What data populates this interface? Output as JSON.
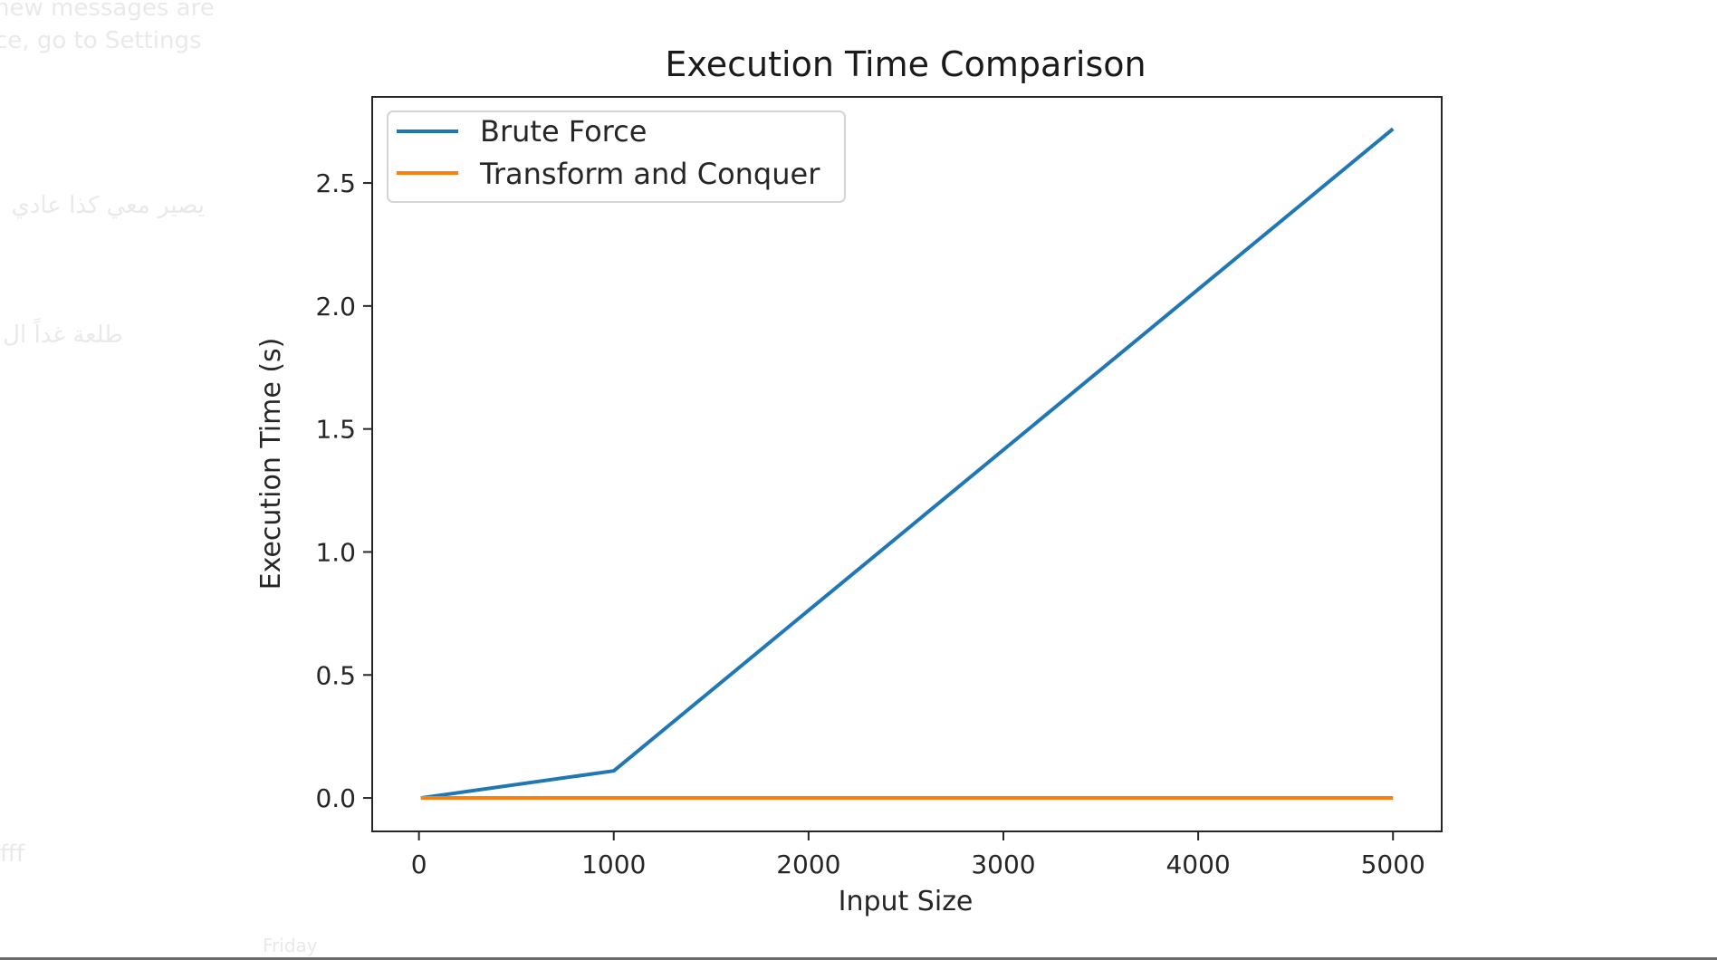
{
  "background_ghost_text": {
    "line1": "new messages are",
    "line2": "ce, go to Settings",
    "line3": "يصير معي كذا عادي",
    "line4": "طلعة غداً ال",
    "line5": "fff",
    "line6": "Friday"
  },
  "chart_data": {
    "type": "line",
    "title": "Execution Time Comparison",
    "xlabel": "Input Size",
    "ylabel": "Execution Time (s)",
    "x": [
      10,
      1000,
      5000
    ],
    "series": [
      {
        "name": "Brute Force",
        "color": "#1f77b4",
        "values": [
          0.0,
          0.11,
          2.72
        ]
      },
      {
        "name": "Transform and Conquer",
        "color": "#ff7f0e",
        "values": [
          0.0,
          0.0,
          0.0
        ]
      }
    ],
    "xlim": [
      -240,
      5250
    ],
    "ylim": [
      -0.136,
      2.85
    ],
    "xticks": [
      0,
      1000,
      2000,
      3000,
      4000,
      5000
    ],
    "xtick_labels": [
      "0",
      "1000",
      "2000",
      "3000",
      "4000",
      "5000"
    ],
    "yticks": [
      0.0,
      0.5,
      1.0,
      1.5,
      2.0,
      2.5
    ],
    "ytick_labels": [
      "0.0",
      "0.5",
      "1.0",
      "1.5",
      "2.0",
      "2.5"
    ],
    "grid": false,
    "legend_position": "upper-left"
  }
}
